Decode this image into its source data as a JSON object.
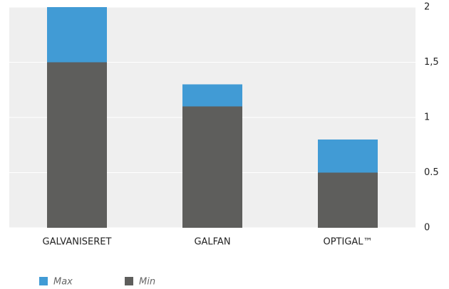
{
  "chart_data": {
    "type": "bar",
    "stacked": true,
    "categories": [
      "GALVANISERET",
      "GALFAN",
      "OPTIGAL™"
    ],
    "series": [
      {
        "name": "Max",
        "color": "#419bd5",
        "values": [
          0.5,
          0.2,
          0.3
        ]
      },
      {
        "name": "Min",
        "color": "#5e5e5c",
        "values": [
          1.5,
          1.1,
          0.5
        ]
      }
    ],
    "ylim": [
      0,
      2
    ],
    "yticks": [
      0,
      0.5,
      1,
      {
        "value": 1.5,
        "label": "1,5"
      },
      2
    ],
    "grid": true,
    "y_axis_side": "right",
    "legend": "bottom-left"
  }
}
